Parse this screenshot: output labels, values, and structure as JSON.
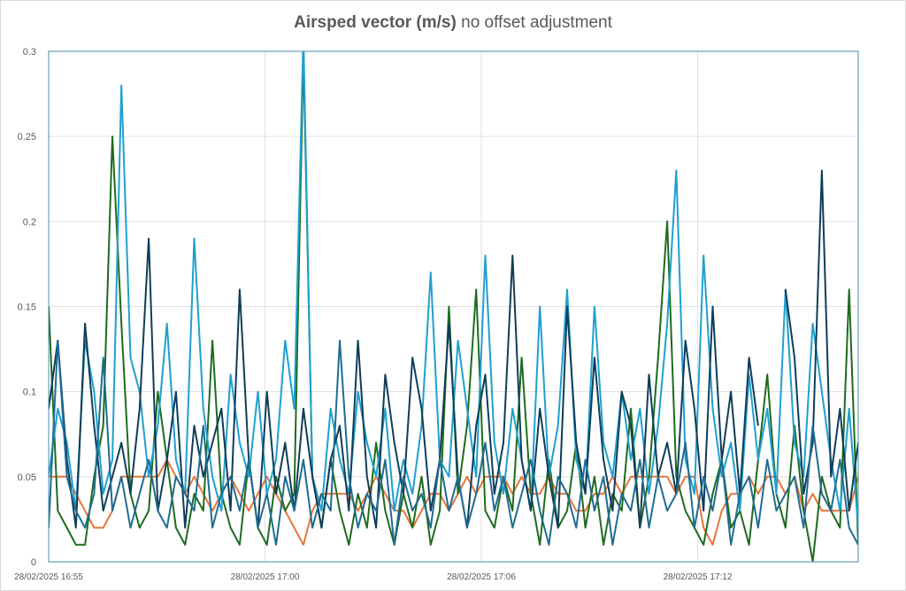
{
  "chart_data": {
    "type": "line",
    "title_bold": "Airsped vector (m/s)",
    "title_rest": " no offset adjustment",
    "xlabel": "",
    "ylabel": "",
    "ylim": [
      0,
      0.3
    ],
    "yticks": [
      "0",
      "0.05",
      "0.1",
      "0.15",
      "0.2",
      "0.25",
      "0.3"
    ],
    "xticks": [
      "28/02/2025 16:55",
      "28/02/2025 17:00",
      "28/02/2025 17:06",
      "28/02/2025 17:12"
    ],
    "grid": true,
    "legend": "none",
    "series": [
      {
        "color": "#E8743B",
        "values": [
          0.05,
          0.05,
          0.05,
          0.04,
          0.03,
          0.02,
          0.02,
          0.03,
          0.05,
          0.05,
          0.05,
          0.05,
          0.05,
          0.06,
          0.05,
          0.04,
          0.05,
          0.04,
          0.03,
          0.04,
          0.05,
          0.04,
          0.03,
          0.04,
          0.05,
          0.04,
          0.03,
          0.02,
          0.01,
          0.03,
          0.04,
          0.04,
          0.04,
          0.04,
          0.03,
          0.04,
          0.05,
          0.04,
          0.03,
          0.03,
          0.02,
          0.03,
          0.04,
          0.04,
          0.03,
          0.04,
          0.05,
          0.04,
          0.05,
          0.05,
          0.05,
          0.04,
          0.05,
          0.04,
          0.04,
          0.05,
          0.04,
          0.04,
          0.03,
          0.03,
          0.04,
          0.04,
          0.05,
          0.04,
          0.05,
          0.05,
          0.05,
          0.05,
          0.05,
          0.04,
          0.05,
          0.05,
          0.02,
          0.01,
          0.03,
          0.04,
          0.04,
          0.05,
          0.04,
          0.05,
          0.05,
          0.04,
          0.05,
          0.03,
          0.04,
          0.03,
          0.03,
          0.03,
          0.03,
          0.05
        ]
      },
      {
        "color": "#1E6B1E",
        "values": [
          0.15,
          0.03,
          0.02,
          0.01,
          0.01,
          0.05,
          0.08,
          0.25,
          0.14,
          0.04,
          0.02,
          0.03,
          0.1,
          0.06,
          0.02,
          0.01,
          0.04,
          0.03,
          0.13,
          0.04,
          0.02,
          0.01,
          0.06,
          0.02,
          0.01,
          0.05,
          0.03,
          0.04,
          0.3,
          0.05,
          0.02,
          0.06,
          0.03,
          0.01,
          0.04,
          0.02,
          0.07,
          0.03,
          0.01,
          0.04,
          0.02,
          0.05,
          0.01,
          0.03,
          0.15,
          0.04,
          0.08,
          0.16,
          0.03,
          0.02,
          0.05,
          0.03,
          0.12,
          0.04,
          0.01,
          0.06,
          0.02,
          0.03,
          0.07,
          0.02,
          0.05,
          0.01,
          0.04,
          0.03,
          0.09,
          0.02,
          0.05,
          0.12,
          0.2,
          0.05,
          0.03,
          0.02,
          0.01,
          0.04,
          0.06,
          0.02,
          0.03,
          0.01,
          0.06,
          0.11,
          0.04,
          0.02,
          0.08,
          0.03,
          0.0,
          0.05,
          0.03,
          0.02,
          0.16,
          0.01
        ]
      },
      {
        "color": "#1FA0D0",
        "values": [
          0.05,
          0.09,
          0.07,
          0.03,
          0.13,
          0.1,
          0.04,
          0.06,
          0.28,
          0.12,
          0.1,
          0.05,
          0.08,
          0.14,
          0.06,
          0.04,
          0.19,
          0.09,
          0.05,
          0.03,
          0.11,
          0.07,
          0.05,
          0.1,
          0.04,
          0.06,
          0.13,
          0.09,
          0.31,
          0.05,
          0.03,
          0.09,
          0.06,
          0.04,
          0.1,
          0.07,
          0.05,
          0.09,
          0.03,
          0.06,
          0.04,
          0.08,
          0.17,
          0.06,
          0.05,
          0.13,
          0.09,
          0.05,
          0.18,
          0.07,
          0.04,
          0.09,
          0.06,
          0.03,
          0.15,
          0.05,
          0.08,
          0.16,
          0.06,
          0.04,
          0.15,
          0.07,
          0.05,
          0.1,
          0.06,
          0.09,
          0.04,
          0.08,
          0.14,
          0.23,
          0.06,
          0.04,
          0.18,
          0.09,
          0.05,
          0.07,
          0.03,
          0.11,
          0.06,
          0.09,
          0.04,
          0.16,
          0.07,
          0.05,
          0.14,
          0.1,
          0.06,
          0.03,
          0.09,
          0.02
        ]
      },
      {
        "color": "#0F3D57",
        "values": [
          0.09,
          0.13,
          0.06,
          0.02,
          0.14,
          0.08,
          0.03,
          0.05,
          0.07,
          0.04,
          0.09,
          0.19,
          0.03,
          0.06,
          0.1,
          0.02,
          0.08,
          0.05,
          0.07,
          0.09,
          0.03,
          0.16,
          0.06,
          0.02,
          0.1,
          0.04,
          0.07,
          0.03,
          0.09,
          0.05,
          0.02,
          0.06,
          0.08,
          0.03,
          0.13,
          0.05,
          0.02,
          0.11,
          0.07,
          0.04,
          0.12,
          0.09,
          0.03,
          0.06,
          0.14,
          0.05,
          0.02,
          0.08,
          0.11,
          0.04,
          0.07,
          0.18,
          0.06,
          0.03,
          0.09,
          0.05,
          0.02,
          0.15,
          0.07,
          0.04,
          0.12,
          0.06,
          0.03,
          0.1,
          0.08,
          0.02,
          0.11,
          0.05,
          0.07,
          0.04,
          0.13,
          0.09,
          0.03,
          0.15,
          0.06,
          0.1,
          0.04,
          0.12,
          0.08,
          null,
          null,
          0.16,
          0.12,
          0.04,
          0.07,
          0.23,
          0.05,
          0.09,
          0.03,
          0.07
        ]
      },
      {
        "color": "#1E6C93",
        "values": [
          0.02,
          0.13,
          0.05,
          0.03,
          0.02,
          0.04,
          0.12,
          0.03,
          0.05,
          0.02,
          0.04,
          0.06,
          0.03,
          0.02,
          0.05,
          0.04,
          0.03,
          0.08,
          0.02,
          0.04,
          0.05,
          0.03,
          0.06,
          0.02,
          0.04,
          0.01,
          0.05,
          0.03,
          0.06,
          0.02,
          0.04,
          0.03,
          0.13,
          0.05,
          0.02,
          0.04,
          0.03,
          0.06,
          0.01,
          0.05,
          0.03,
          0.04,
          0.02,
          0.06,
          0.03,
          0.05,
          0.02,
          0.04,
          0.07,
          0.03,
          0.05,
          0.02,
          0.04,
          0.06,
          0.03,
          0.01,
          0.05,
          0.04,
          0.02,
          0.06,
          0.03,
          0.05,
          0.01,
          0.04,
          0.03,
          0.06,
          0.02,
          0.05,
          0.03,
          0.04,
          0.07,
          0.02,
          0.05,
          0.03,
          0.06,
          0.01,
          0.04,
          0.05,
          0.02,
          0.06,
          0.03,
          0.04,
          0.05,
          0.02,
          0.08,
          0.04,
          0.03,
          0.06,
          0.02,
          0.01
        ]
      }
    ]
  }
}
